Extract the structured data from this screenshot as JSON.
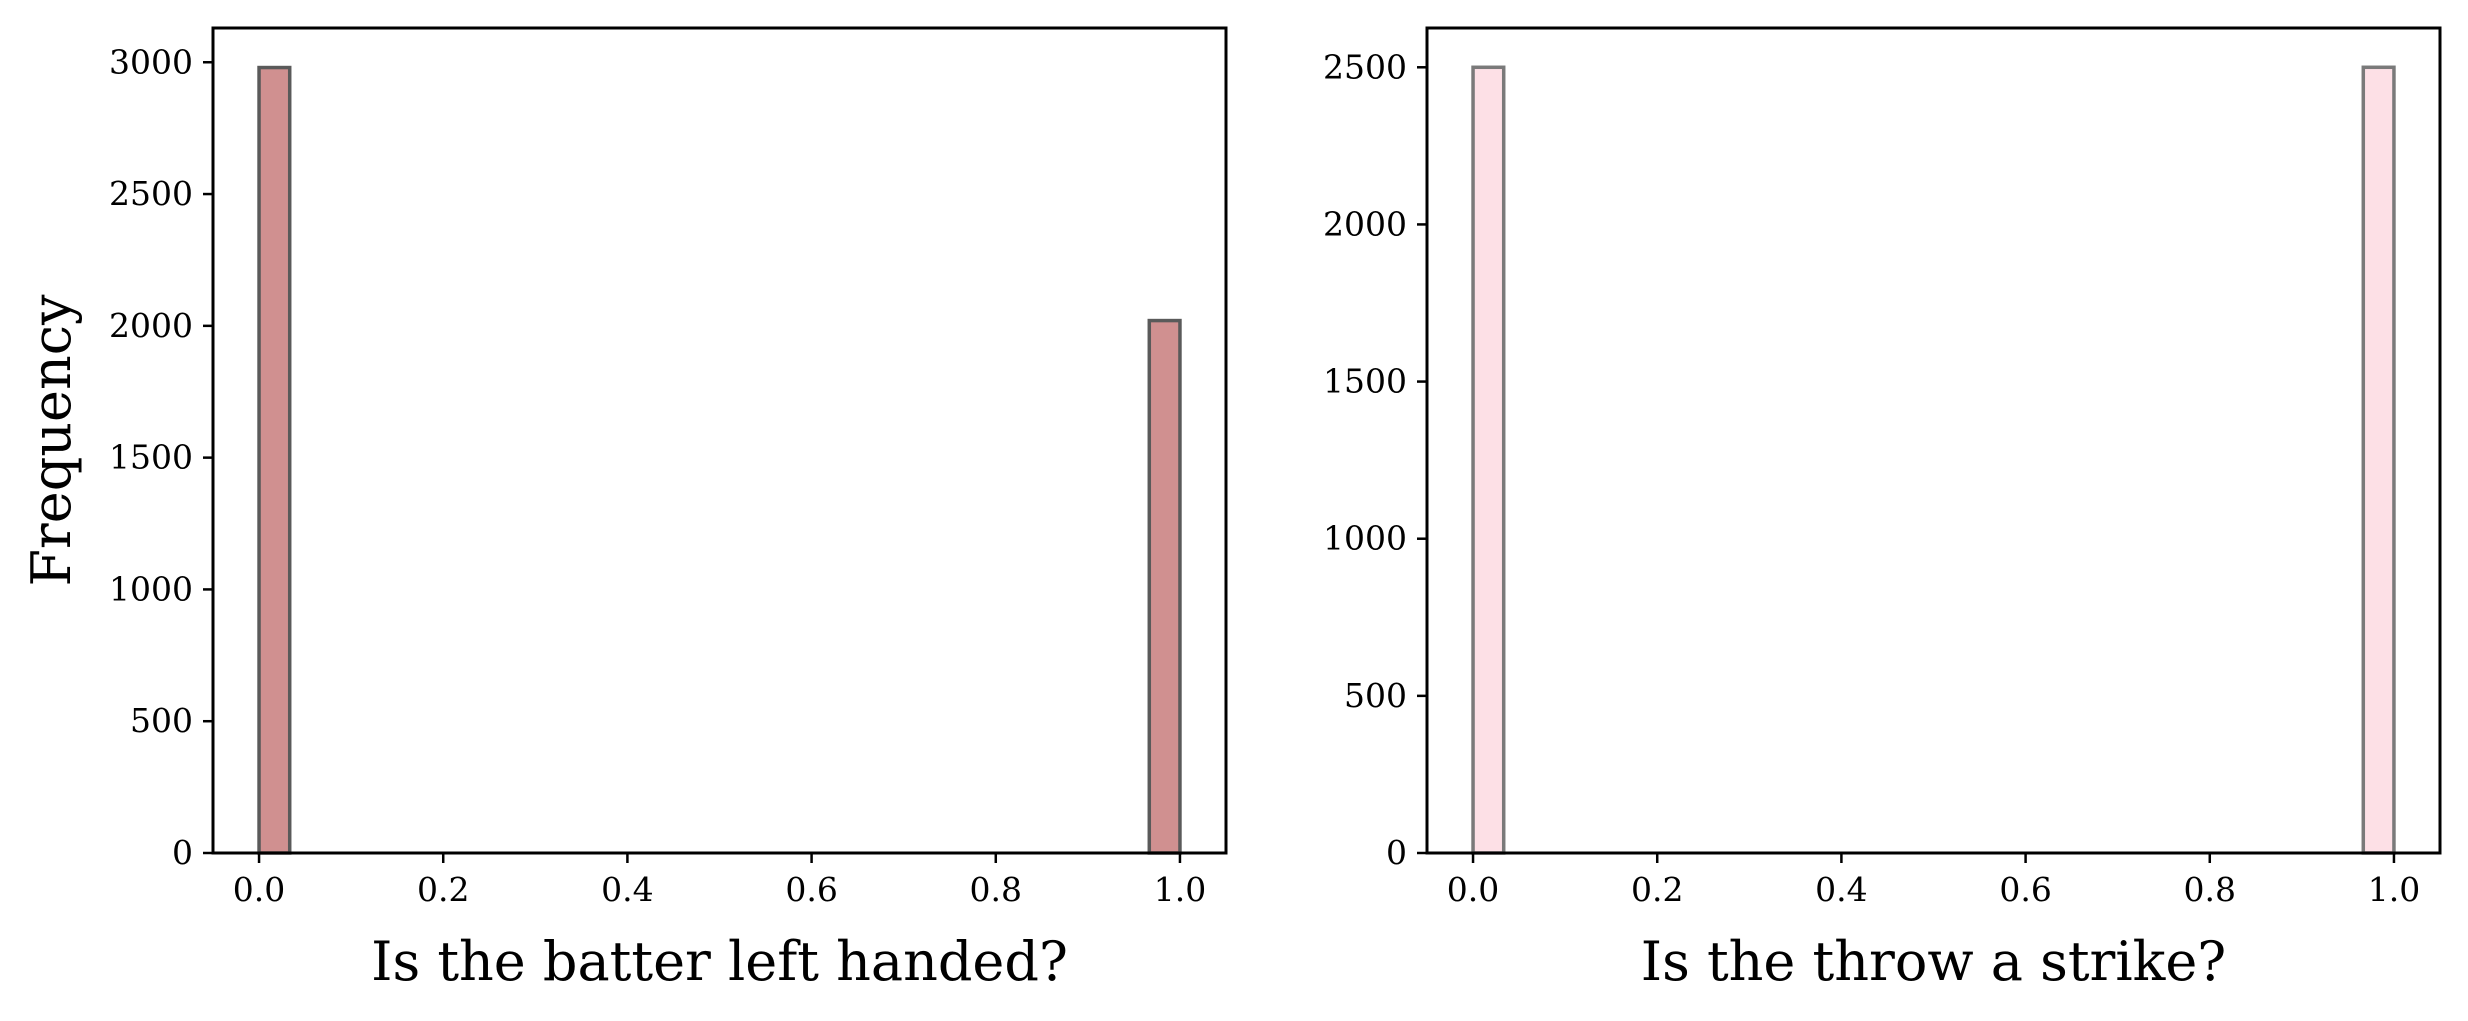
{
  "chart_data": [
    {
      "type": "bar",
      "bins": [
        {
          "x0": 0.0,
          "x1": 0.0333,
          "count": 2980
        },
        {
          "x0": 0.9667,
          "x1": 1.0,
          "count": 2020
        }
      ],
      "xlabel": "Is the batter left handed?",
      "ylabel": "Frequency",
      "xlim": [
        -0.05,
        1.05
      ],
      "ylim": [
        0,
        3130
      ],
      "xticks": [
        0.0,
        0.2,
        0.4,
        0.6,
        0.8,
        1.0
      ],
      "xtick_labels": [
        "0.0",
        "0.2",
        "0.4",
        "0.6",
        "0.8",
        "1.0"
      ],
      "yticks": [
        0,
        500,
        1000,
        1500,
        2000,
        2500,
        3000
      ],
      "ytick_labels": [
        "0",
        "500",
        "1000",
        "1500",
        "2000",
        "2500",
        "3000"
      ],
      "grid": false,
      "bar_color": "#d09090",
      "edge_color": "#5a5a5a"
    },
    {
      "type": "bar",
      "bins": [
        {
          "x0": 0.0,
          "x1": 0.0333,
          "count": 2500
        },
        {
          "x0": 0.9667,
          "x1": 1.0,
          "count": 2500
        }
      ],
      "xlabel": "Is the throw a strike?",
      "ylabel": "",
      "xlim": [
        -0.05,
        1.05
      ],
      "ylim": [
        0,
        2625
      ],
      "xticks": [
        0.0,
        0.2,
        0.4,
        0.6,
        0.8,
        1.0
      ],
      "xtick_labels": [
        "0.0",
        "0.2",
        "0.4",
        "0.6",
        "0.8",
        "1.0"
      ],
      "yticks": [
        0,
        500,
        1000,
        1500,
        2000,
        2500
      ],
      "ytick_labels": [
        "0",
        "500",
        "1000",
        "1500",
        "2000",
        "2500"
      ],
      "grid": false,
      "bar_color": "#fde0e6",
      "edge_color": "#7a7a7a"
    }
  ]
}
